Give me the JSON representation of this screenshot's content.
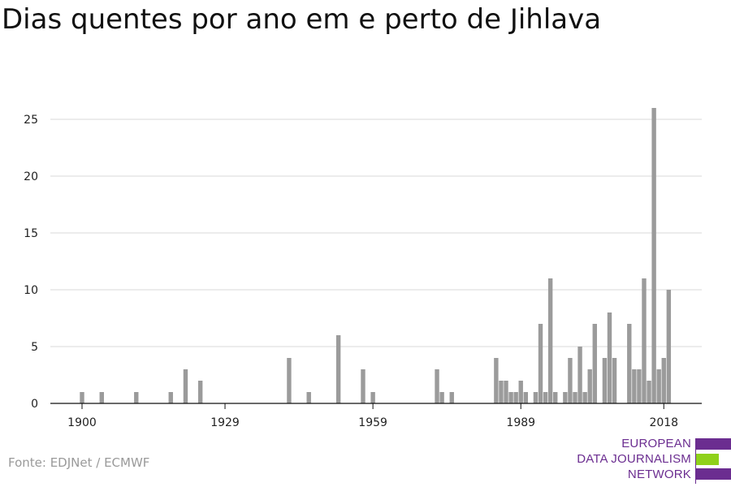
{
  "title": "Dias quentes por ano em e perto de Jihlava",
  "source": "Fonte: EDJNet / ECMWF",
  "logo": {
    "lines": [
      "EUROPEAN",
      "DATA JOURNALISM",
      "NETWORK"
    ],
    "colors": {
      "purple": "#6b2d90",
      "green": "#8fd11a"
    }
  },
  "chart_data": {
    "type": "bar",
    "title": "Dias quentes por ano em e perto de Jihlava",
    "xlabel": "",
    "ylabel": "",
    "x_ticks": [
      "1900",
      "1929",
      "1959",
      "1989",
      "2018"
    ],
    "y_ticks": [
      "0",
      "5",
      "10",
      "15",
      "20",
      "25"
    ],
    "ylim": [
      0,
      26
    ],
    "xlim": [
      1900,
      2020
    ],
    "grid": true,
    "bar_color": "#9b9b9b",
    "categories": [
      1900,
      1901,
      1902,
      1903,
      1904,
      1905,
      1906,
      1907,
      1908,
      1909,
      1910,
      1911,
      1912,
      1913,
      1914,
      1915,
      1916,
      1917,
      1918,
      1919,
      1920,
      1921,
      1922,
      1923,
      1924,
      1925,
      1926,
      1927,
      1928,
      1929,
      1930,
      1931,
      1932,
      1933,
      1934,
      1935,
      1936,
      1937,
      1938,
      1939,
      1940,
      1941,
      1942,
      1943,
      1944,
      1945,
      1946,
      1947,
      1948,
      1949,
      1950,
      1951,
      1952,
      1953,
      1954,
      1955,
      1956,
      1957,
      1958,
      1959,
      1960,
      1961,
      1962,
      1963,
      1964,
      1965,
      1966,
      1967,
      1968,
      1969,
      1970,
      1971,
      1972,
      1973,
      1974,
      1975,
      1976,
      1977,
      1978,
      1979,
      1980,
      1981,
      1982,
      1983,
      1984,
      1985,
      1986,
      1987,
      1988,
      1989,
      1990,
      1991,
      1992,
      1993,
      1994,
      1995,
      1996,
      1997,
      1998,
      1999,
      2000,
      2001,
      2002,
      2003,
      2004,
      2005,
      2006,
      2007,
      2008,
      2009,
      2010,
      2011,
      2012,
      2013,
      2014,
      2015,
      2016,
      2017,
      2018,
      2019
    ],
    "values": [
      1,
      0,
      0,
      0,
      1,
      0,
      0,
      0,
      0,
      0,
      0,
      1,
      0,
      0,
      0,
      0,
      0,
      0,
      1,
      0,
      0,
      3,
      0,
      0,
      2,
      0,
      0,
      0,
      0,
      0,
      0,
      0,
      0,
      0,
      0,
      0,
      0,
      0,
      0,
      0,
      0,
      0,
      4,
      0,
      0,
      0,
      1,
      0,
      0,
      0,
      0,
      0,
      6,
      0,
      0,
      0,
      0,
      3,
      0,
      1,
      0,
      0,
      0,
      0,
      0,
      0,
      0,
      0,
      0,
      0,
      0,
      0,
      3,
      1,
      0,
      1,
      0,
      0,
      0,
      0,
      0,
      0,
      0,
      0,
      4,
      2,
      2,
      1,
      1,
      2,
      1,
      0,
      1,
      7,
      1,
      11,
      1,
      0,
      1,
      4,
      1,
      5,
      1,
      3,
      7,
      0,
      4,
      8,
      4,
      0,
      0,
      7,
      3,
      3,
      11,
      2,
      26,
      3,
      4,
      10
    ]
  }
}
